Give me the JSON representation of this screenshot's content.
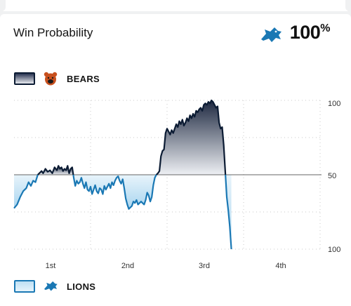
{
  "header": {
    "title": "Win Probability",
    "leader_logo": "lions-logo-icon",
    "leader_pct": "100",
    "pct_symbol": "%"
  },
  "legend": {
    "top": {
      "team": "BEARS",
      "logo": "bears-logo-icon"
    },
    "bottom": {
      "team": "LIONS",
      "logo": "lions-logo-icon"
    }
  },
  "colors": {
    "bears": "#0b1b33",
    "lions": "#1a78b4",
    "midline": "#666666",
    "grid": "#c8c8c8"
  },
  "chart_data": {
    "type": "area",
    "title": "",
    "x_ticks": [
      "1st",
      "2nd",
      "3rd",
      "4th"
    ],
    "y_ticks": [
      "100",
      "50",
      "100"
    ],
    "ylim": [
      -100,
      100
    ],
    "note_units": "positive = Bears win probability above 50 (scaled to 50..100), negative = Lions",
    "series": [
      {
        "name": "BEARS",
        "values": [
          [
            0,
            -45
          ],
          [
            0.04,
            -40
          ],
          [
            0.08,
            -30
          ],
          [
            0.12,
            -22
          ],
          [
            0.16,
            -18
          ],
          [
            0.19,
            -10
          ],
          [
            0.22,
            -15
          ],
          [
            0.25,
            -8
          ],
          [
            0.28,
            -10
          ],
          [
            0.31,
            0
          ],
          [
            0.33,
            2
          ],
          [
            0.36,
            5
          ],
          [
            0.38,
            2
          ],
          [
            0.41,
            8
          ],
          [
            0.44,
            4
          ],
          [
            0.47,
            6
          ],
          [
            0.5,
            2
          ],
          [
            0.53,
            10
          ],
          [
            0.56,
            6
          ],
          [
            0.58,
            12
          ],
          [
            0.6,
            8
          ],
          [
            0.62,
            10
          ],
          [
            0.64,
            5
          ],
          [
            0.66,
            8
          ],
          [
            0.68,
            6
          ],
          [
            0.7,
            12
          ],
          [
            0.72,
            2
          ],
          [
            0.74,
            8
          ],
          [
            0.76,
            10
          ],
          [
            0.78,
            -4
          ],
          [
            0.8,
            -15
          ],
          [
            0.82,
            -8
          ],
          [
            0.84,
            -12
          ],
          [
            0.86,
            -10
          ],
          [
            0.88,
            -4
          ],
          [
            0.9,
            -12
          ],
          [
            0.92,
            -18
          ],
          [
            0.94,
            -10
          ],
          [
            0.96,
            -20
          ],
          [
            0.98,
            -22
          ],
          [
            1.0,
            -16
          ],
          [
            1.02,
            -26
          ],
          [
            1.04,
            -20
          ],
          [
            1.06,
            -14
          ],
          [
            1.08,
            -22
          ],
          [
            1.1,
            -25
          ],
          [
            1.12,
            -18
          ],
          [
            1.14,
            -20
          ],
          [
            1.16,
            -26
          ],
          [
            1.18,
            -15
          ],
          [
            1.2,
            -20
          ],
          [
            1.22,
            -16
          ],
          [
            1.24,
            -12
          ],
          [
            1.26,
            -18
          ],
          [
            1.28,
            -10
          ],
          [
            1.3,
            -14
          ],
          [
            1.32,
            -8
          ],
          [
            1.34,
            -4
          ],
          [
            1.36,
            -2
          ],
          [
            1.38,
            -8
          ],
          [
            1.4,
            -12
          ],
          [
            1.42,
            -6
          ],
          [
            1.44,
            -18
          ],
          [
            1.46,
            -32
          ],
          [
            1.48,
            -40
          ],
          [
            1.5,
            -46
          ],
          [
            1.52,
            -44
          ],
          [
            1.54,
            -42
          ],
          [
            1.56,
            -36
          ],
          [
            1.58,
            -38
          ],
          [
            1.6,
            -34
          ],
          [
            1.62,
            -40
          ],
          [
            1.64,
            -38
          ],
          [
            1.66,
            -36
          ],
          [
            1.68,
            -38
          ],
          [
            1.7,
            -40
          ],
          [
            1.72,
            -34
          ],
          [
            1.74,
            -24
          ],
          [
            1.76,
            -28
          ],
          [
            1.78,
            -36
          ],
          [
            1.8,
            -30
          ],
          [
            1.82,
            -14
          ],
          [
            1.84,
            -4
          ],
          [
            1.86,
            0
          ],
          [
            1.88,
            2
          ],
          [
            1.9,
            5
          ],
          [
            1.92,
            25
          ],
          [
            1.94,
            32
          ],
          [
            1.96,
            34
          ],
          [
            1.98,
            56
          ],
          [
            2.0,
            62
          ],
          [
            2.02,
            58
          ],
          [
            2.04,
            54
          ],
          [
            2.06,
            60
          ],
          [
            2.08,
            56
          ],
          [
            2.1,
            62
          ],
          [
            2.12,
            68
          ],
          [
            2.14,
            64
          ],
          [
            2.16,
            72
          ],
          [
            2.18,
            68
          ],
          [
            2.2,
            74
          ],
          [
            2.22,
            66
          ],
          [
            2.24,
            70
          ],
          [
            2.26,
            76
          ],
          [
            2.28,
            72
          ],
          [
            2.3,
            80
          ],
          [
            2.32,
            76
          ],
          [
            2.34,
            82
          ],
          [
            2.36,
            78
          ],
          [
            2.38,
            86
          ],
          [
            2.4,
            84
          ],
          [
            2.42,
            88
          ],
          [
            2.44,
            90
          ],
          [
            2.46,
            86
          ],
          [
            2.48,
            94
          ],
          [
            2.5,
            96
          ],
          [
            2.52,
            94
          ],
          [
            2.54,
            98
          ],
          [
            2.56,
            96
          ],
          [
            2.58,
            100
          ],
          [
            2.6,
            98
          ],
          [
            2.62,
            94
          ],
          [
            2.64,
            90
          ],
          [
            2.66,
            92
          ],
          [
            2.68,
            70
          ],
          [
            2.7,
            62
          ],
          [
            2.72,
            64
          ],
          [
            2.74,
            40
          ],
          [
            2.76,
            5
          ],
          [
            2.78,
            -30
          ],
          [
            2.8,
            -48
          ],
          [
            2.82,
            -70
          ],
          [
            2.84,
            -100
          ]
        ]
      }
    ]
  }
}
